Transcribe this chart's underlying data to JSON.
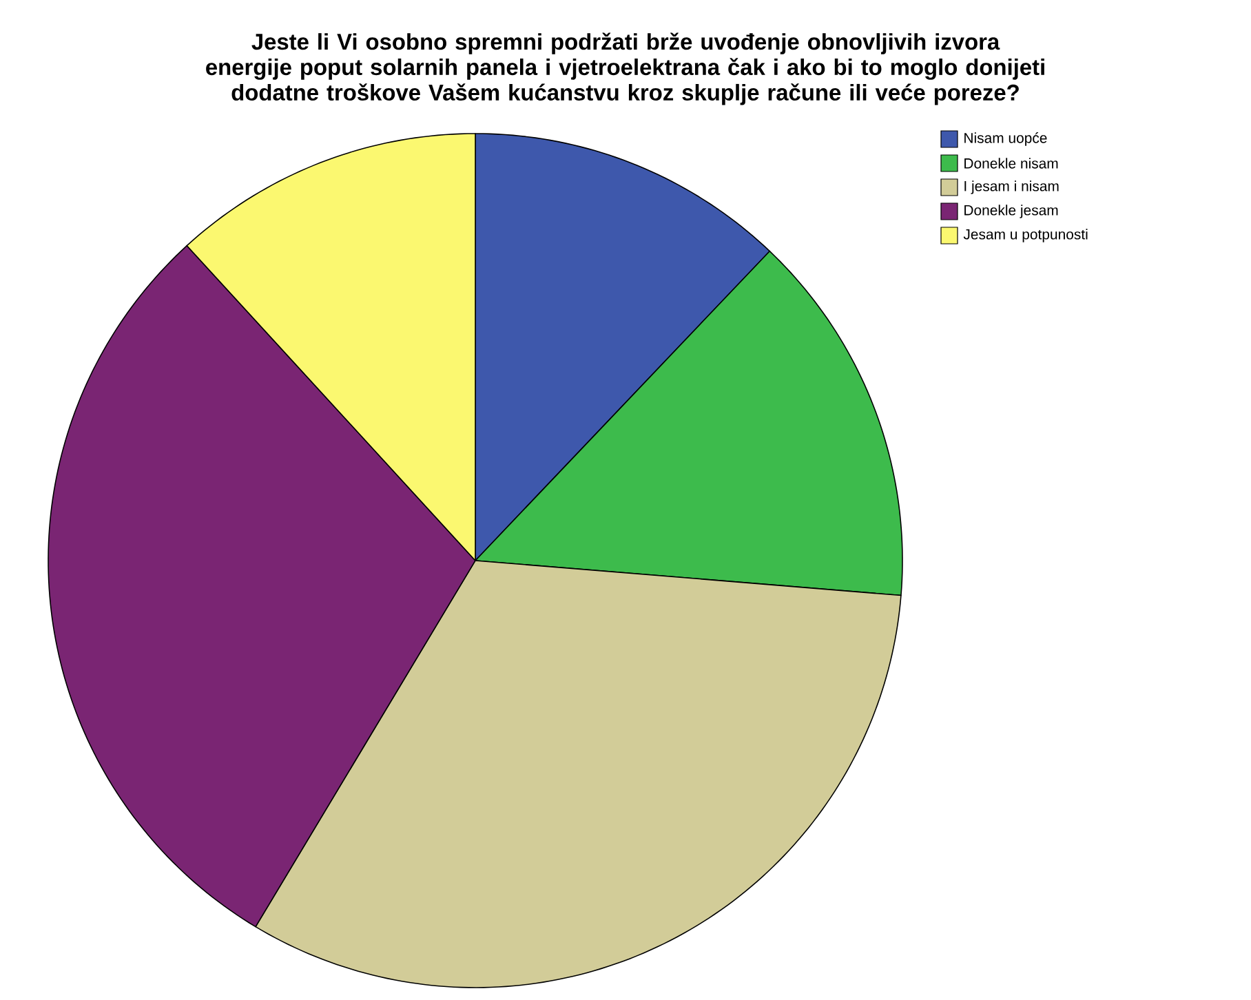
{
  "chart_data": {
    "type": "pie",
    "title": "Jeste li Vi osobno spremni podržati brže uvođenje obnovljivih izvora energije poput solarnih panela i vjetroelektrana čak i ako bi to moglo donijeti dodatne troškove Vašem kućanstvu kroz skuplje račune ili veće poreze?",
    "categories": [
      "Nisam uopće",
      "Donekle nisam",
      "I jesam i nisam",
      "Donekle jesam",
      "Jesam u potpunosti"
    ],
    "values": [
      12.1,
      14.2,
      32.3,
      29.6,
      11.8
    ],
    "colors": [
      "#3e58ac",
      "#3dbb4c",
      "#d2cc98",
      "#7a2573",
      "#fbf870"
    ],
    "legend": "top right"
  }
}
